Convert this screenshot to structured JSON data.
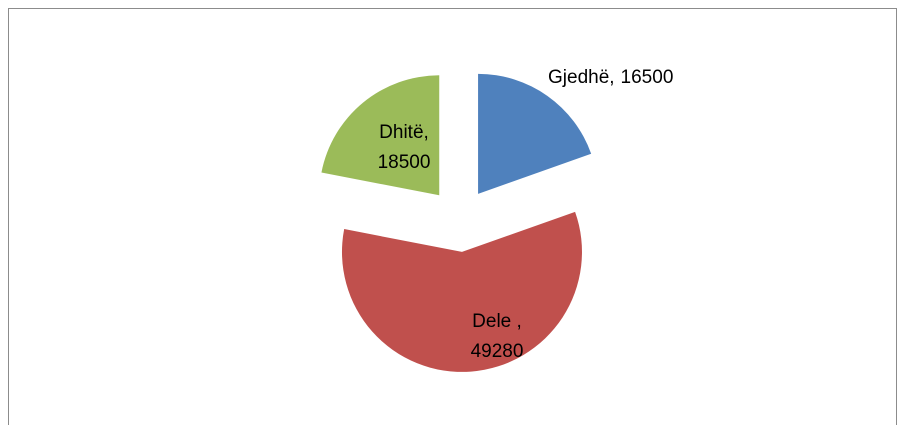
{
  "chart_data": {
    "type": "pie",
    "exploded": true,
    "categories": [
      "Gjedhë,",
      "Dele ,",
      "Dhitë,"
    ],
    "values": [
      16500,
      49280,
      18500
    ],
    "colors": [
      "#4f81bd",
      "#c0504d",
      "#9bbb59"
    ]
  }
}
